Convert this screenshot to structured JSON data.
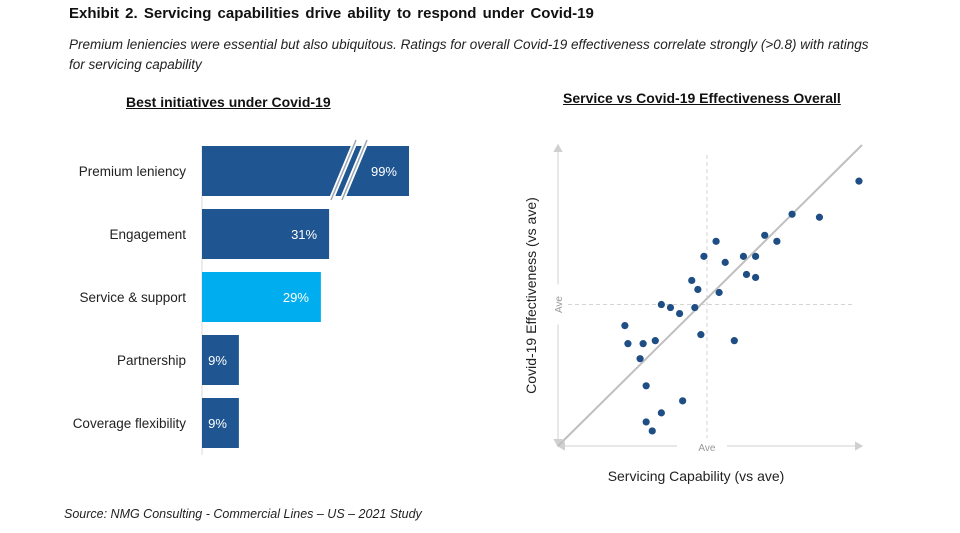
{
  "header": {
    "title": "Exhibit 2. Servicing capabilities drive ability to respond under Covid-19",
    "subtitle": "Premium leniencies were essential but also ubiquitous. Ratings for overall Covid-19 effectiveness correlate strongly (>0.8) with ratings for servicing capability"
  },
  "source": "Source: NMG Consulting - Commercial Lines – US – 2021 Study",
  "colors": {
    "bar_primary": "#1F5591",
    "bar_highlight": "#00AEEF",
    "point": "#1F4E85",
    "trend": "#BFBFBF",
    "axis": "#D9D9D9"
  },
  "chart_data": [
    {
      "type": "bar",
      "orientation": "horizontal",
      "title": "Best initiatives under Covid-19",
      "categories": [
        "Premium leniency",
        "Engagement",
        "Service & support",
        "Partnership",
        "Coverage flexibility"
      ],
      "values": [
        99,
        31,
        29,
        9,
        9
      ],
      "value_labels": [
        "99%",
        "31%",
        "29%",
        "9%",
        "9%"
      ],
      "highlight": [
        false,
        false,
        true,
        false,
        false
      ],
      "axis_break": "Premium leniency",
      "xlabel": "",
      "ylabel": "",
      "grid": false
    },
    {
      "type": "scatter",
      "title": "Service vs Covid-19 Effectiveness Overall",
      "xlabel": "Servicing Capability (vs ave)",
      "ylabel": "Covid-19 Effectiveness (vs ave)",
      "x_ave_label": "Ave",
      "y_ave_label": "Ave",
      "x_ave": 49,
      "y_ave": 47,
      "xlim": [
        0,
        100
      ],
      "ylim": [
        0,
        100
      ],
      "trendline": {
        "x": [
          0,
          100
        ],
        "y": [
          0,
          100
        ]
      },
      "points": [
        {
          "x": 99,
          "y": 88
        },
        {
          "x": 77,
          "y": 77
        },
        {
          "x": 86,
          "y": 76
        },
        {
          "x": 68,
          "y": 70
        },
        {
          "x": 72,
          "y": 68
        },
        {
          "x": 52,
          "y": 68
        },
        {
          "x": 48,
          "y": 63
        },
        {
          "x": 55,
          "y": 61
        },
        {
          "x": 61,
          "y": 63
        },
        {
          "x": 65,
          "y": 63
        },
        {
          "x": 62,
          "y": 57
        },
        {
          "x": 65,
          "y": 56
        },
        {
          "x": 44,
          "y": 55
        },
        {
          "x": 46,
          "y": 52
        },
        {
          "x": 53,
          "y": 51
        },
        {
          "x": 34,
          "y": 47
        },
        {
          "x": 37,
          "y": 46
        },
        {
          "x": 40,
          "y": 44
        },
        {
          "x": 45,
          "y": 46
        },
        {
          "x": 22,
          "y": 40
        },
        {
          "x": 23,
          "y": 34
        },
        {
          "x": 28,
          "y": 34
        },
        {
          "x": 32,
          "y": 35
        },
        {
          "x": 47,
          "y": 37
        },
        {
          "x": 58,
          "y": 35
        },
        {
          "x": 27,
          "y": 29
        },
        {
          "x": 29,
          "y": 20
        },
        {
          "x": 41,
          "y": 15
        },
        {
          "x": 34,
          "y": 11
        },
        {
          "x": 29,
          "y": 8
        },
        {
          "x": 31,
          "y": 5
        }
      ],
      "grid": false,
      "legend": "none"
    }
  ]
}
